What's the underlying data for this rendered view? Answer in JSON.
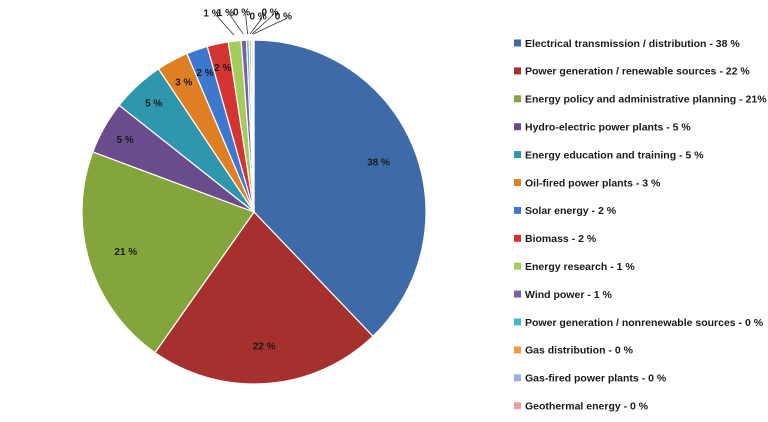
{
  "chart_data": {
    "type": "pie",
    "title": "",
    "slices": [
      {
        "label": "Electrical transmission / distribution - 38 %",
        "value": 38,
        "value_label": "38 %",
        "color": "#3E6AA7"
      },
      {
        "label": "Power generation / renewable sources - 22 %",
        "value": 22,
        "value_label": "22 %",
        "color": "#A5302E"
      },
      {
        "label": "Energy policy and administrative planning - 21%",
        "value": 21,
        "value_label": "21 %",
        "color": "#84A53B"
      },
      {
        "label": "Hydro-electric power plants - 5 %",
        "value": 5,
        "value_label": "5 %",
        "color": "#6A4C8C"
      },
      {
        "label": "Energy education and training - 5 %",
        "value": 5,
        "value_label": "5 %",
        "color": "#2E97AE"
      },
      {
        "label": "Oil-fired power plants - 3 %",
        "value": 3,
        "value_label": "3 %",
        "color": "#E07E24"
      },
      {
        "label": "Solar energy - 2 %",
        "value": 2,
        "value_label": "2 %",
        "color": "#3D78CF"
      },
      {
        "label": "Biomass - 2 %",
        "value": 2,
        "value_label": "2 %",
        "color": "#D43532"
      },
      {
        "label": "Energy research - 1 %",
        "value": 1.2,
        "value_label": "1 %",
        "color": "#A4CC5A"
      },
      {
        "label": "Wind power - 1 %",
        "value": 0.5,
        "value_label": "1 %",
        "color": "#7D5FA6"
      },
      {
        "label": "Power generation / nonrenewable sources - 0 %",
        "value": 0.25,
        "value_label": "0 %",
        "color": "#43B6D2"
      },
      {
        "label": "Gas distribution - 0 %",
        "value": 0.2,
        "value_label": "0 %",
        "color": "#F29A3C"
      },
      {
        "label": "Gas-fired power plants - 0 %",
        "value": 0.15,
        "value_label": "0 %",
        "color": "#95B3D7"
      },
      {
        "label": "Geothermal energy - 0 %",
        "value": 0.1,
        "value_label": "0 %",
        "color": "#E6A0A0"
      }
    ],
    "legend_position": "right"
  }
}
